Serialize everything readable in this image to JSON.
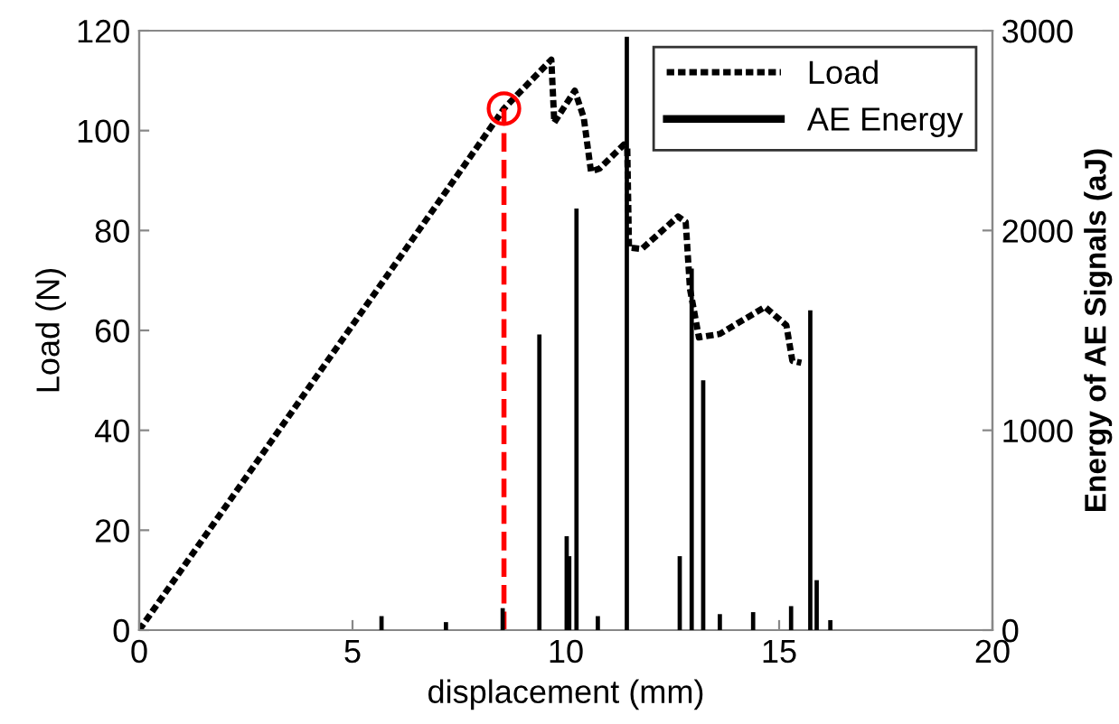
{
  "chart_data": {
    "type": "line",
    "xlabel": "displacement (mm)",
    "ylabel": "Load (N)",
    "y2label": "Energy of AE Signals (aJ)",
    "xlim": [
      0,
      20
    ],
    "xticks": [
      0,
      5,
      10,
      15,
      20
    ],
    "ylim": [
      0,
      120
    ],
    "yticks": [
      0,
      20,
      40,
      60,
      80,
      100,
      120
    ],
    "y2lim": [
      0,
      3000
    ],
    "y2ticks": [
      0,
      1000,
      2000,
      3000
    ],
    "grid": false,
    "legend": "top right",
    "series": [
      {
        "name": "Load",
        "color": "#000000",
        "line_style": "dotted",
        "x": [
          0,
          8.55,
          9.66,
          9.73,
          10.21,
          10.42,
          10.59,
          10.79,
          11.36,
          11.44,
          11.48,
          11.78,
          12.63,
          12.81,
          12.91,
          13.12,
          13.61,
          14.67,
          15.17,
          15.31,
          15.52
        ],
        "values": [
          0,
          104.4,
          114.2,
          101.6,
          108,
          102.6,
          91.8,
          92.4,
          97.2,
          96.5,
          76.6,
          76.3,
          82.8,
          81.7,
          68.3,
          58.6,
          59.3,
          64.7,
          61,
          53.9,
          53.5
        ]
      },
      {
        "name": "AE Energy",
        "type": "bar",
        "axis": "y2",
        "color": "#000000",
        "x": [
          5.68,
          7.19,
          8.52,
          9.38,
          10.02,
          10.08,
          10.25,
          10.75,
          11.43,
          12.67,
          12.95,
          13.22,
          13.61,
          14.39,
          15.28,
          15.73,
          15.88,
          16.2
        ],
        "values": [
          70,
          40,
          110,
          1480,
          470,
          370,
          2110,
          70,
          2970,
          370,
          1810,
          1250,
          80,
          90,
          120,
          1600,
          250,
          50
        ]
      },
      {
        "type": "scatter",
        "color": "#ff0000",
        "marker": "circle",
        "x": [
          8.55
        ],
        "values": [
          104.4
        ]
      }
    ],
    "ref_lines": [
      {
        "axis": "x",
        "value": 8.55,
        "color": "#ff0000",
        "line_style": "dashed"
      }
    ]
  }
}
